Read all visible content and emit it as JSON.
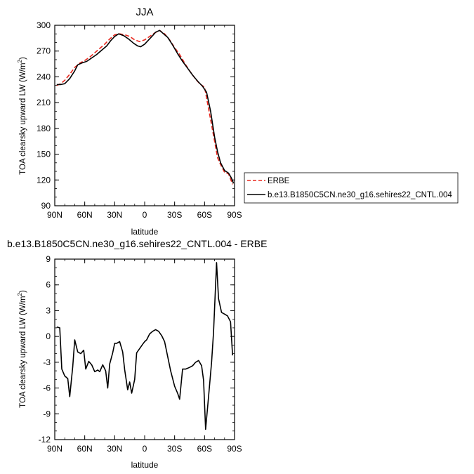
{
  "chart_data": [
    {
      "type": "line",
      "title": "JJA",
      "xlabel": "latitude",
      "ylabel_prefix": "TOA clearsky upward LW (W/m",
      "ylabel_sup": "2",
      "ylabel_suffix": ")",
      "xlim": [
        90,
        -90
      ],
      "ylim": [
        90,
        300
      ],
      "x_ticks": [
        90,
        60,
        30,
        0,
        -30,
        -60,
        -90
      ],
      "x_tick_labels": [
        "90N",
        "60N",
        "30N",
        "0",
        "30S",
        "60S",
        "90S"
      ],
      "y_ticks": [
        90,
        120,
        150,
        180,
        210,
        240,
        270,
        300
      ],
      "y_tick_labels": [
        "90",
        "120",
        "150",
        "180",
        "210",
        "240",
        "270",
        "300"
      ],
      "legend": "right, outside plot",
      "series": [
        {
          "name": "ERBE",
          "color": "#e8281e",
          "style": "dashed",
          "points": [
            [
              88,
              230
            ],
            [
              84,
              232
            ],
            [
              80,
              236
            ],
            [
              75,
              243
            ],
            [
              70,
              251
            ],
            [
              65,
              256
            ],
            [
              60,
              259
            ],
            [
              55,
              263
            ],
            [
              50,
              268
            ],
            [
              45,
              273
            ],
            [
              40,
              278
            ],
            [
              35,
              284
            ],
            [
              30,
              289
            ],
            [
              25,
              290
            ],
            [
              20,
              289
            ],
            [
              15,
              287
            ],
            [
              10,
              283
            ],
            [
              5,
              281
            ],
            [
              0,
              283
            ],
            [
              -5,
              287
            ],
            [
              -10,
              291
            ],
            [
              -15,
              294
            ],
            [
              -20,
              290
            ],
            [
              -25,
              283
            ],
            [
              -30,
              274
            ],
            [
              -35,
              266
            ],
            [
              -40,
              256
            ],
            [
              -45,
              247
            ],
            [
              -50,
              239
            ],
            [
              -55,
              232
            ],
            [
              -60,
              228
            ],
            [
              -65,
              197
            ],
            [
              -70,
              165
            ],
            [
              -73,
              146
            ],
            [
              -76,
              138
            ],
            [
              -80,
              129
            ],
            [
              -84,
              127
            ],
            [
              -88,
              115
            ]
          ]
        },
        {
          "name": "b.e13.B1850C5CN.ne30_g16.sehires22_CNTL.004",
          "color": "#000000",
          "style": "solid",
          "points": [
            [
              88,
              231
            ],
            [
              84,
              231
            ],
            [
              80,
              232
            ],
            [
              75,
              238
            ],
            [
              70,
              247
            ],
            [
              67,
              254
            ],
            [
              63,
              256
            ],
            [
              58,
              258
            ],
            [
              53,
              262
            ],
            [
              48,
              266
            ],
            [
              43,
              271
            ],
            [
              38,
              276
            ],
            [
              34,
              282
            ],
            [
              30,
              287
            ],
            [
              26,
              290
            ],
            [
              21,
              288
            ],
            [
              16,
              284
            ],
            [
              11,
              279
            ],
            [
              7,
              276
            ],
            [
              4,
              275
            ],
            [
              0,
              278
            ],
            [
              -4,
              283
            ],
            [
              -8,
              288
            ],
            [
              -11,
              292
            ],
            [
              -15,
              294
            ],
            [
              -18,
              291
            ],
            [
              -23,
              286
            ],
            [
              -28,
              277
            ],
            [
              -33,
              267
            ],
            [
              -38,
              258
            ],
            [
              -43,
              250
            ],
            [
              -48,
              242
            ],
            [
              -53,
              235
            ],
            [
              -58,
              229
            ],
            [
              -62,
              222
            ],
            [
              -66,
              200
            ],
            [
              -70,
              170
            ],
            [
              -73,
              153
            ],
            [
              -76,
              140
            ],
            [
              -80,
              131
            ],
            [
              -84,
              128
            ],
            [
              -87,
              122
            ],
            [
              -89,
              116
            ]
          ]
        }
      ]
    },
    {
      "type": "line",
      "title": "b.e13.B1850C5CN.ne30_g16.sehires22_CNTL.004 - ERBE",
      "xlabel": "latitude",
      "ylabel_prefix": "TOA clearsky upward LW (W/m",
      "ylabel_sup": "2",
      "ylabel_suffix": ")",
      "xlim": [
        90,
        -90
      ],
      "ylim": [
        -12,
        9
      ],
      "x_ticks": [
        90,
        60,
        30,
        0,
        -30,
        -60,
        -90
      ],
      "x_tick_labels": [
        "90N",
        "60N",
        "30N",
        "0",
        "30S",
        "60S",
        "90S"
      ],
      "y_ticks": [
        -12,
        -9,
        -6,
        -3,
        0,
        3,
        6,
        9
      ],
      "y_tick_labels": [
        "-12",
        "-9",
        "-6",
        "-3",
        "0",
        "3",
        "6",
        "9"
      ],
      "series": [
        {
          "color": "#000000",
          "style": "solid",
          "points": [
            [
              88,
              1.1
            ],
            [
              85,
              1.0
            ],
            [
              83,
              -3.8
            ],
            [
              80,
              -4.6
            ],
            [
              77,
              -4.9
            ],
            [
              75,
              -7.0
            ],
            [
              72,
              -3.5
            ],
            [
              70,
              -0.4
            ],
            [
              67,
              -1.8
            ],
            [
              64,
              -2.0
            ],
            [
              61,
              -1.6
            ],
            [
              59,
              -3.8
            ],
            [
              56,
              -2.9
            ],
            [
              53,
              -3.3
            ],
            [
              50,
              -4.1
            ],
            [
              47,
              -3.9
            ],
            [
              45,
              -4.1
            ],
            [
              42,
              -3.3
            ],
            [
              39,
              -4.0
            ],
            [
              37,
              -6.0
            ],
            [
              35,
              -3.2
            ],
            [
              32,
              -1.9
            ],
            [
              30,
              -0.8
            ],
            [
              28,
              -0.8
            ],
            [
              25,
              -0.6
            ],
            [
              22,
              -1.8
            ],
            [
              20,
              -3.9
            ],
            [
              17,
              -6.2
            ],
            [
              15,
              -5.3
            ],
            [
              13,
              -6.6
            ],
            [
              10,
              -5.0
            ],
            [
              8,
              -1.9
            ],
            [
              5,
              -1.4
            ],
            [
              2,
              -0.9
            ],
            [
              0,
              -0.6
            ],
            [
              -2,
              -0.4
            ],
            [
              -5,
              0.3
            ],
            [
              -8,
              0.6
            ],
            [
              -11,
              0.8
            ],
            [
              -14,
              0.6
            ],
            [
              -17,
              0.1
            ],
            [
              -20,
              -0.6
            ],
            [
              -23,
              -2.3
            ],
            [
              -26,
              -4.0
            ],
            [
              -30,
              -5.8
            ],
            [
              -33,
              -6.6
            ],
            [
              -35,
              -7.3
            ],
            [
              -38,
              -3.8
            ],
            [
              -41,
              -3.8
            ],
            [
              -45,
              -3.6
            ],
            [
              -48,
              -3.4
            ],
            [
              -51,
              -3.0
            ],
            [
              -54,
              -2.8
            ],
            [
              -57,
              -3.4
            ],
            [
              -59,
              -5.1
            ],
            [
              -61,
              -10.8
            ],
            [
              -64,
              -7.0
            ],
            [
              -67,
              -3.0
            ],
            [
              -69,
              0.5
            ],
            [
              -72,
              8.6
            ],
            [
              -74,
              4.4
            ],
            [
              -77,
              2.8
            ],
            [
              -80,
              2.6
            ],
            [
              -83,
              2.4
            ],
            [
              -86,
              1.7
            ],
            [
              -88,
              -2.2
            ]
          ]
        }
      ]
    }
  ]
}
